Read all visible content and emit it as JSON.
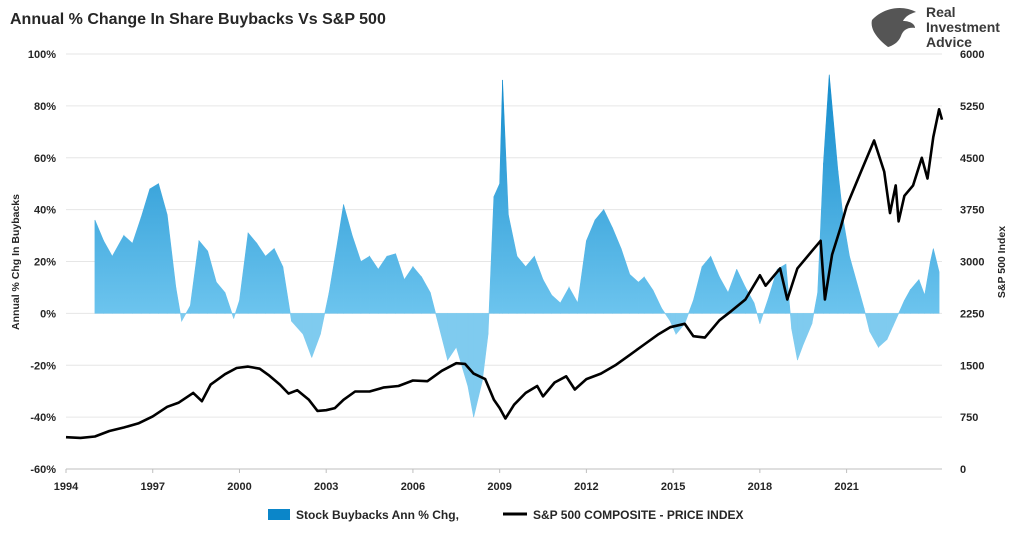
{
  "chart_data": {
    "type": "area",
    "title": "Annual % Change In Share Buybacks Vs S&P 500",
    "brand": [
      "Real",
      "Investment",
      "Advice"
    ],
    "xlabel": "",
    "ylabel_left": "Annual % Chg In Buybacks",
    "ylabel_right": "S&P 500 Index",
    "xlim": [
      1994,
      2024.3
    ],
    "ylim_left": [
      -60,
      100
    ],
    "ylim_right": [
      0,
      6000
    ],
    "x_ticks": [
      "1994",
      "1997",
      "2000",
      "2003",
      "2006",
      "2009",
      "2012",
      "2015",
      "2018",
      "2021"
    ],
    "y_left_ticks": [
      "100%",
      "80%",
      "60%",
      "40%",
      "20%",
      "0%",
      "-20%",
      "-40%",
      "-60%"
    ],
    "y_right_ticks": [
      "6000",
      "5250",
      "4500",
      "3750",
      "3000",
      "2250",
      "1500",
      "750",
      "0"
    ],
    "grid": true,
    "legend_position": "bottom",
    "colors": {
      "buyback_positive": "#0b86c9",
      "buyback_positive_light": "#6cc4ee",
      "buyback_negative": "#7fcbef",
      "sp500": "#000000",
      "grid": "#e6e6e6"
    },
    "series": [
      {
        "name": "Stock Buybacks Ann % Chg,",
        "axis": "left",
        "points": [
          [
            1995.0,
            36
          ],
          [
            1995.3,
            28
          ],
          [
            1995.6,
            22
          ],
          [
            1996.0,
            30
          ],
          [
            1996.3,
            27
          ],
          [
            1996.6,
            37
          ],
          [
            1996.9,
            48
          ],
          [
            1997.2,
            50
          ],
          [
            1997.5,
            38
          ],
          [
            1997.8,
            10
          ],
          [
            1998.0,
            -3
          ],
          [
            1998.3,
            3
          ],
          [
            1998.6,
            28
          ],
          [
            1998.9,
            24
          ],
          [
            1999.2,
            12
          ],
          [
            1999.5,
            8
          ],
          [
            1999.8,
            -2
          ],
          [
            2000.0,
            5
          ],
          [
            2000.3,
            31
          ],
          [
            2000.6,
            27
          ],
          [
            2000.9,
            22
          ],
          [
            2001.2,
            25
          ],
          [
            2001.5,
            18
          ],
          [
            2001.8,
            -3
          ],
          [
            2002.2,
            -8
          ],
          [
            2002.5,
            -17
          ],
          [
            2002.8,
            -8
          ],
          [
            2003.1,
            8
          ],
          [
            2003.4,
            28
          ],
          [
            2003.6,
            42
          ],
          [
            2003.9,
            30
          ],
          [
            2004.2,
            20
          ],
          [
            2004.5,
            22
          ],
          [
            2004.8,
            17
          ],
          [
            2005.1,
            22
          ],
          [
            2005.4,
            23
          ],
          [
            2005.7,
            13
          ],
          [
            2006.0,
            18
          ],
          [
            2006.3,
            14
          ],
          [
            2006.6,
            8
          ],
          [
            2006.9,
            -5
          ],
          [
            2007.2,
            -18
          ],
          [
            2007.5,
            -13
          ],
          [
            2007.9,
            -28
          ],
          [
            2008.1,
            -40
          ],
          [
            2008.4,
            -26
          ],
          [
            2008.6,
            -8
          ],
          [
            2008.8,
            45
          ],
          [
            2009.0,
            50
          ],
          [
            2009.1,
            90
          ],
          [
            2009.3,
            38
          ],
          [
            2009.6,
            22
          ],
          [
            2009.9,
            18
          ],
          [
            2010.2,
            22
          ],
          [
            2010.5,
            13
          ],
          [
            2010.8,
            7
          ],
          [
            2011.1,
            4
          ],
          [
            2011.4,
            10
          ],
          [
            2011.7,
            4
          ],
          [
            2012.0,
            28
          ],
          [
            2012.3,
            36
          ],
          [
            2012.6,
            40
          ],
          [
            2012.9,
            33
          ],
          [
            2013.2,
            25
          ],
          [
            2013.5,
            15
          ],
          [
            2013.8,
            12
          ],
          [
            2014.0,
            14
          ],
          [
            2014.3,
            9
          ],
          [
            2014.6,
            2
          ],
          [
            2014.9,
            -3
          ],
          [
            2015.1,
            -8
          ],
          [
            2015.4,
            -4
          ],
          [
            2015.7,
            5
          ],
          [
            2016.0,
            18
          ],
          [
            2016.3,
            22
          ],
          [
            2016.6,
            14
          ],
          [
            2016.9,
            8
          ],
          [
            2017.2,
            17
          ],
          [
            2017.5,
            10
          ],
          [
            2017.8,
            4
          ],
          [
            2018.0,
            -4
          ],
          [
            2018.3,
            6
          ],
          [
            2018.6,
            17
          ],
          [
            2018.9,
            19
          ],
          [
            2019.1,
            -6
          ],
          [
            2019.3,
            -18
          ],
          [
            2019.5,
            -12
          ],
          [
            2019.8,
            -4
          ],
          [
            2020.0,
            8
          ],
          [
            2020.2,
            58
          ],
          [
            2020.4,
            92
          ],
          [
            2020.7,
            55
          ],
          [
            2020.9,
            35
          ],
          [
            2021.1,
            22
          ],
          [
            2021.4,
            10
          ],
          [
            2021.6,
            2
          ],
          [
            2021.8,
            -7
          ],
          [
            2022.1,
            -13
          ],
          [
            2022.4,
            -10
          ],
          [
            2022.6,
            -5
          ],
          [
            2022.8,
            0
          ],
          [
            2023.0,
            5
          ],
          [
            2023.2,
            9
          ],
          [
            2023.5,
            13
          ],
          [
            2023.7,
            7
          ],
          [
            2023.9,
            20
          ],
          [
            2024.0,
            25
          ],
          [
            2024.2,
            16
          ]
        ]
      },
      {
        "name": "S&P 500 COMPOSITE - PRICE INDEX",
        "axis": "right",
        "points": [
          [
            1994.0,
            460
          ],
          [
            1994.5,
            450
          ],
          [
            1995.0,
            470
          ],
          [
            1995.5,
            550
          ],
          [
            1996.0,
            600
          ],
          [
            1996.5,
            660
          ],
          [
            1997.0,
            760
          ],
          [
            1997.5,
            900
          ],
          [
            1997.9,
            960
          ],
          [
            1998.4,
            1100
          ],
          [
            1998.7,
            980
          ],
          [
            1999.0,
            1220
          ],
          [
            1999.5,
            1370
          ],
          [
            1999.9,
            1460
          ],
          [
            2000.3,
            1480
          ],
          [
            2000.7,
            1450
          ],
          [
            2001.0,
            1360
          ],
          [
            2001.4,
            1220
          ],
          [
            2001.7,
            1090
          ],
          [
            2002.0,
            1140
          ],
          [
            2002.4,
            1000
          ],
          [
            2002.7,
            840
          ],
          [
            2003.0,
            850
          ],
          [
            2003.3,
            880
          ],
          [
            2003.6,
            1000
          ],
          [
            2004.0,
            1120
          ],
          [
            2004.5,
            1120
          ],
          [
            2005.0,
            1180
          ],
          [
            2005.5,
            1200
          ],
          [
            2006.0,
            1280
          ],
          [
            2006.5,
            1270
          ],
          [
            2007.0,
            1420
          ],
          [
            2007.5,
            1530
          ],
          [
            2007.8,
            1520
          ],
          [
            2008.1,
            1380
          ],
          [
            2008.5,
            1300
          ],
          [
            2008.8,
            1000
          ],
          [
            2009.0,
            880
          ],
          [
            2009.2,
            730
          ],
          [
            2009.5,
            930
          ],
          [
            2009.9,
            1100
          ],
          [
            2010.3,
            1200
          ],
          [
            2010.5,
            1050
          ],
          [
            2010.9,
            1250
          ],
          [
            2011.3,
            1340
          ],
          [
            2011.6,
            1150
          ],
          [
            2012.0,
            1300
          ],
          [
            2012.5,
            1380
          ],
          [
            2013.0,
            1500
          ],
          [
            2013.5,
            1650
          ],
          [
            2014.0,
            1800
          ],
          [
            2014.5,
            1950
          ],
          [
            2014.9,
            2050
          ],
          [
            2015.4,
            2100
          ],
          [
            2015.7,
            1920
          ],
          [
            2016.1,
            1900
          ],
          [
            2016.6,
            2150
          ],
          [
            2017.0,
            2280
          ],
          [
            2017.5,
            2450
          ],
          [
            2018.0,
            2800
          ],
          [
            2018.2,
            2650
          ],
          [
            2018.7,
            2900
          ],
          [
            2018.95,
            2450
          ],
          [
            2019.3,
            2900
          ],
          [
            2019.8,
            3150
          ],
          [
            2020.1,
            3300
          ],
          [
            2020.25,
            2450
          ],
          [
            2020.5,
            3100
          ],
          [
            2020.8,
            3500
          ],
          [
            2021.0,
            3800
          ],
          [
            2021.5,
            4300
          ],
          [
            2021.95,
            4750
          ],
          [
            2022.3,
            4300
          ],
          [
            2022.5,
            3700
          ],
          [
            2022.7,
            4100
          ],
          [
            2022.8,
            3580
          ],
          [
            2023.0,
            3950
          ],
          [
            2023.3,
            4100
          ],
          [
            2023.6,
            4500
          ],
          [
            2023.8,
            4200
          ],
          [
            2024.0,
            4800
          ],
          [
            2024.2,
            5200
          ],
          [
            2024.3,
            5050
          ]
        ]
      }
    ]
  }
}
